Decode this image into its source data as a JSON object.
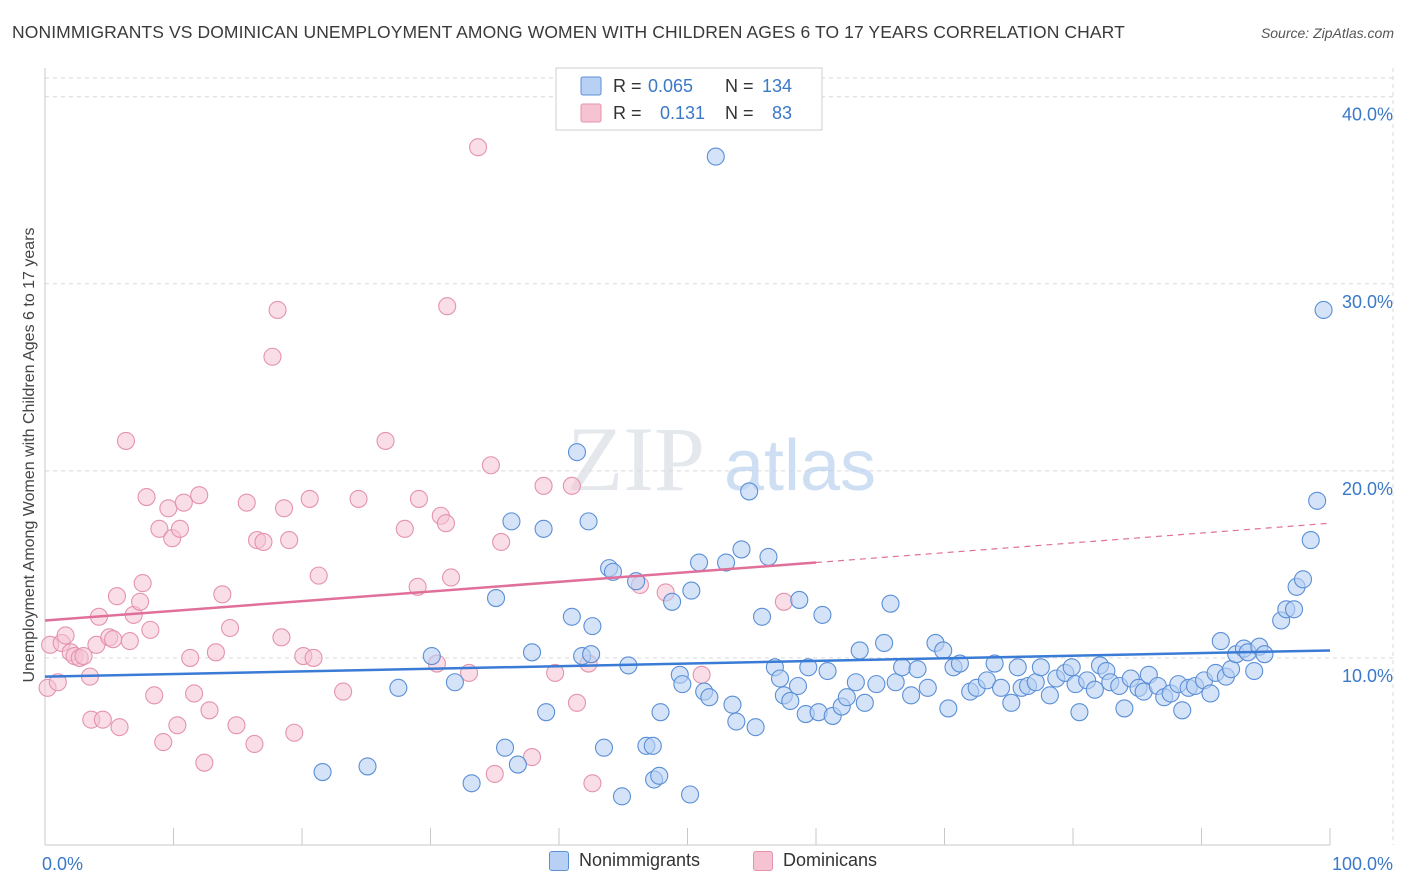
{
  "title": "NONIMMIGRANTS VS DOMINICAN UNEMPLOYMENT AMONG WOMEN WITH CHILDREN AGES 6 TO 17 YEARS CORRELATION CHART",
  "source": "Source: ZipAtlas.com",
  "watermark": {
    "zip": "ZIP",
    "atlas": "atlas"
  },
  "colors": {
    "blue_fill": "#b8d0f3",
    "blue_stroke": "#5b8fd6",
    "blue_line": "#3a7bd5",
    "pink_fill": "#f6c3d3",
    "pink_stroke": "#e493ad",
    "pink_line": "#e0709a",
    "grid": "#d9d9d9",
    "tick_label": "#3a78c8"
  },
  "legend_top": [
    {
      "r_label": "R =",
      "r_value": "0.065",
      "n_label": "N =",
      "n_value": "134"
    },
    {
      "r_label": "R =",
      "r_value": "0.131",
      "n_label": "N =",
      "n_value": "83"
    }
  ],
  "legend_bottom": [
    "Nonimmigrants",
    "Dominicans"
  ],
  "chart_data": {
    "type": "scatter",
    "title": "NONIMMIGRANTS VS DOMINICAN UNEMPLOYMENT AMONG WOMEN WITH CHILDREN AGES 6 TO 17 YEARS CORRELATION CHART",
    "xlabel": "",
    "ylabel": "Unemployment Among Women with Children Ages 6 to 17 years",
    "xlim": [
      0,
      100
    ],
    "ylim": [
      0,
      41
    ],
    "x_tick_labels": [
      "0.0%",
      "100.0%"
    ],
    "y_ticks": [
      10,
      20,
      30,
      40
    ],
    "y_tick_labels": [
      "10.0%",
      "20.0%",
      "30.0%",
      "40.0%"
    ],
    "grid": true,
    "legend_placement": "top-center",
    "series": [
      {
        "name": "Nonimmigrants",
        "r": 0.065,
        "n": 134,
        "trend": {
          "x": [
            0,
            100
          ],
          "y": [
            9.0,
            10.4
          ]
        },
        "points": [
          [
            21.6,
            3.9
          ],
          [
            25.1,
            4.2
          ],
          [
            27.5,
            8.4
          ],
          [
            30.1,
            10.1
          ],
          [
            31.9,
            8.7
          ],
          [
            35.1,
            13.2
          ],
          [
            36.3,
            17.3
          ],
          [
            38.8,
            16.9
          ],
          [
            33.2,
            3.3
          ],
          [
            35.8,
            5.2
          ],
          [
            36.8,
            4.3
          ],
          [
            37.9,
            10.3
          ],
          [
            39.0,
            7.1
          ],
          [
            41.0,
            12.2
          ],
          [
            41.4,
            21.0
          ],
          [
            42.3,
            17.3
          ],
          [
            41.8,
            10.1
          ],
          [
            42.5,
            10.2
          ],
          [
            42.6,
            11.7
          ],
          [
            43.5,
            5.2
          ],
          [
            43.9,
            14.8
          ],
          [
            44.2,
            14.6
          ],
          [
            46.0,
            14.1
          ],
          [
            45.4,
            9.6
          ],
          [
            44.9,
            2.6
          ],
          [
            46.8,
            5.3
          ],
          [
            47.3,
            5.3
          ],
          [
            47.4,
            3.5
          ],
          [
            47.8,
            3.7
          ],
          [
            47.9,
            7.1
          ],
          [
            48.8,
            13.0
          ],
          [
            49.4,
            9.1
          ],
          [
            49.6,
            8.6
          ],
          [
            50.3,
            13.6
          ],
          [
            50.2,
            2.7
          ],
          [
            51.3,
            8.2
          ],
          [
            51.7,
            7.9
          ],
          [
            53.0,
            15.1
          ],
          [
            53.5,
            7.5
          ],
          [
            53.8,
            6.6
          ],
          [
            54.2,
            15.8
          ],
          [
            54.8,
            18.9
          ],
          [
            55.3,
            6.3
          ],
          [
            55.8,
            12.2
          ],
          [
            56.3,
            15.4
          ],
          [
            56.8,
            9.5
          ],
          [
            57.2,
            8.9
          ],
          [
            57.5,
            8.0
          ],
          [
            58.0,
            7.7
          ],
          [
            58.6,
            8.5
          ],
          [
            59.2,
            7.0
          ],
          [
            59.4,
            9.5
          ],
          [
            60.2,
            7.1
          ],
          [
            60.5,
            12.3
          ],
          [
            60.9,
            9.3
          ],
          [
            61.3,
            6.9
          ],
          [
            62.0,
            7.4
          ],
          [
            62.4,
            7.9
          ],
          [
            63.1,
            8.7
          ],
          [
            63.4,
            10.4
          ],
          [
            63.8,
            7.6
          ],
          [
            64.7,
            8.6
          ],
          [
            65.3,
            10.8
          ],
          [
            65.8,
            12.9
          ],
          [
            66.2,
            8.7
          ],
          [
            66.7,
            9.5
          ],
          [
            67.4,
            8.0
          ],
          [
            67.9,
            9.4
          ],
          [
            68.7,
            8.4
          ],
          [
            69.3,
            10.8
          ],
          [
            69.9,
            10.4
          ],
          [
            70.3,
            7.3
          ],
          [
            70.7,
            9.5
          ],
          [
            71.2,
            9.7
          ],
          [
            72.0,
            8.2
          ],
          [
            72.5,
            8.4
          ],
          [
            73.3,
            8.8
          ],
          [
            73.9,
            9.7
          ],
          [
            74.4,
            8.4
          ],
          [
            75.2,
            7.6
          ],
          [
            75.7,
            9.5
          ],
          [
            76.0,
            8.4
          ],
          [
            76.5,
            8.5
          ],
          [
            77.1,
            8.7
          ],
          [
            77.5,
            9.5
          ],
          [
            78.2,
            8.0
          ],
          [
            78.7,
            8.9
          ],
          [
            79.4,
            9.2
          ],
          [
            79.9,
            9.5
          ],
          [
            80.2,
            8.6
          ],
          [
            80.5,
            7.1
          ],
          [
            81.1,
            8.8
          ],
          [
            81.7,
            8.3
          ],
          [
            82.1,
            9.6
          ],
          [
            82.6,
            9.3
          ],
          [
            82.9,
            8.7
          ],
          [
            83.6,
            8.5
          ],
          [
            84.0,
            7.3
          ],
          [
            84.5,
            8.9
          ],
          [
            85.1,
            8.4
          ],
          [
            85.5,
            8.2
          ],
          [
            85.9,
            9.1
          ],
          [
            86.6,
            8.5
          ],
          [
            87.1,
            7.9
          ],
          [
            87.6,
            8.1
          ],
          [
            88.2,
            8.6
          ],
          [
            88.5,
            7.2
          ],
          [
            89.0,
            8.4
          ],
          [
            89.5,
            8.5
          ],
          [
            90.2,
            8.8
          ],
          [
            90.7,
            8.1
          ],
          [
            91.1,
            9.2
          ],
          [
            91.5,
            10.9
          ],
          [
            91.9,
            9.0
          ],
          [
            92.3,
            9.4
          ],
          [
            92.7,
            10.2
          ],
          [
            93.3,
            10.5
          ],
          [
            93.6,
            10.3
          ],
          [
            94.1,
            9.3
          ],
          [
            94.5,
            10.6
          ],
          [
            94.9,
            10.2
          ],
          [
            96.2,
            12.0
          ],
          [
            96.6,
            12.6
          ],
          [
            97.2,
            12.6
          ],
          [
            97.4,
            13.8
          ],
          [
            97.9,
            14.2
          ],
          [
            98.5,
            16.3
          ],
          [
            99.0,
            18.4
          ],
          [
            99.5,
            28.6
          ],
          [
            52.2,
            36.8
          ],
          [
            50.9,
            15.1
          ],
          [
            58.7,
            13.1
          ]
        ]
      },
      {
        "name": "Dominicans",
        "r": 0.131,
        "n": 83,
        "trend": {
          "x": [
            0,
            60
          ],
          "y": [
            12.0,
            15.1
          ]
        },
        "trend_dashed": {
          "x": [
            60,
            100
          ],
          "y": [
            15.1,
            17.2
          ]
        },
        "points": [
          [
            0.2,
            8.4
          ],
          [
            0.4,
            10.7
          ],
          [
            1.0,
            8.7
          ],
          [
            1.3,
            10.8
          ],
          [
            1.6,
            11.2
          ],
          [
            2.0,
            10.3
          ],
          [
            2.3,
            10.1
          ],
          [
            2.7,
            10.0
          ],
          [
            3.0,
            10.1
          ],
          [
            3.5,
            9.0
          ],
          [
            3.6,
            6.7
          ],
          [
            4.0,
            10.7
          ],
          [
            4.2,
            12.2
          ],
          [
            4.5,
            6.7
          ],
          [
            5.0,
            11.1
          ],
          [
            5.3,
            11.0
          ],
          [
            5.6,
            13.3
          ],
          [
            5.8,
            6.3
          ],
          [
            6.3,
            21.6
          ],
          [
            6.6,
            10.9
          ],
          [
            6.9,
            12.3
          ],
          [
            7.4,
            13.0
          ],
          [
            7.6,
            14.0
          ],
          [
            7.9,
            18.6
          ],
          [
            8.2,
            11.5
          ],
          [
            8.5,
            8.0
          ],
          [
            8.9,
            16.9
          ],
          [
            9.2,
            5.5
          ],
          [
            9.6,
            18.0
          ],
          [
            9.9,
            16.4
          ],
          [
            10.3,
            6.4
          ],
          [
            10.5,
            16.9
          ],
          [
            10.8,
            18.3
          ],
          [
            11.3,
            10.0
          ],
          [
            11.6,
            8.1
          ],
          [
            12.0,
            18.7
          ],
          [
            12.4,
            4.4
          ],
          [
            12.8,
            7.2
          ],
          [
            13.3,
            10.3
          ],
          [
            13.8,
            13.4
          ],
          [
            14.4,
            11.6
          ],
          [
            14.9,
            6.4
          ],
          [
            15.7,
            18.3
          ],
          [
            16.3,
            5.4
          ],
          [
            16.5,
            16.3
          ],
          [
            17.0,
            16.2
          ],
          [
            17.7,
            26.1
          ],
          [
            18.1,
            28.6
          ],
          [
            18.4,
            11.1
          ],
          [
            18.6,
            18.0
          ],
          [
            19.0,
            16.3
          ],
          [
            19.4,
            6.0
          ],
          [
            20.1,
            10.1
          ],
          [
            20.6,
            18.5
          ],
          [
            20.9,
            10.0
          ],
          [
            21.3,
            14.4
          ],
          [
            23.2,
            8.2
          ],
          [
            24.4,
            18.5
          ],
          [
            26.5,
            21.6
          ],
          [
            28.0,
            16.9
          ],
          [
            29.0,
            13.8
          ],
          [
            29.1,
            18.5
          ],
          [
            30.5,
            9.7
          ],
          [
            30.8,
            17.6
          ],
          [
            31.2,
            17.2
          ],
          [
            31.3,
            28.8
          ],
          [
            31.6,
            14.3
          ],
          [
            33.0,
            9.2
          ],
          [
            33.7,
            37.3
          ],
          [
            34.7,
            20.3
          ],
          [
            35.0,
            3.8
          ],
          [
            35.5,
            16.2
          ],
          [
            37.9,
            4.7
          ],
          [
            38.8,
            19.2
          ],
          [
            39.7,
            9.2
          ],
          [
            41.0,
            19.2
          ],
          [
            41.4,
            7.6
          ],
          [
            42.3,
            9.7
          ],
          [
            42.6,
            3.3
          ],
          [
            46.3,
            13.9
          ],
          [
            48.3,
            13.5
          ],
          [
            51.1,
            9.1
          ],
          [
            57.5,
            13.0
          ]
        ]
      }
    ]
  }
}
